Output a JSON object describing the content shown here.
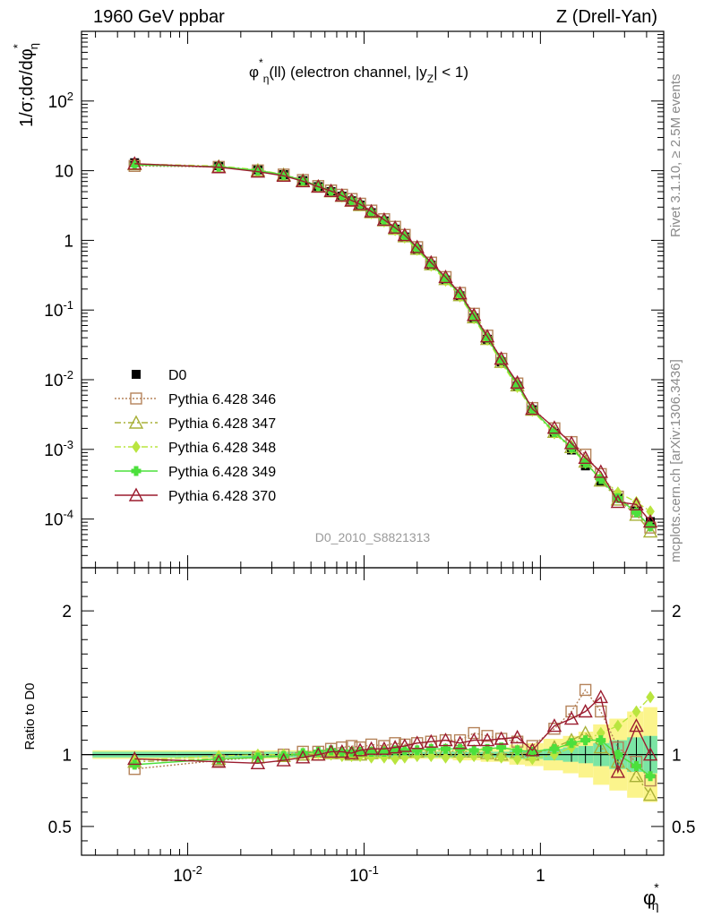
{
  "header": {
    "left": "1960 GeV ppbar",
    "right": "Z (Drell-Yan)"
  },
  "side_labels": {
    "rivet": "Rivet 3.1.10, ≥ 2.5M events",
    "mcplots": "mcplots.cern.ch [arXiv:1306.3436]"
  },
  "chart_data": {
    "type": "scatter",
    "plot_title_base": "φ",
    "plot_title_sup": "*",
    "plot_title_sub": "η",
    "plot_title_rest": "(ll) (electron channel, |y",
    "plot_title_ysub": "Z",
    "plot_title_end": "| < 1)",
    "analysis_id": "D0_2010_S8821313",
    "xlabel_base": "φ",
    "xlabel_sup": "*",
    "xlabel_sub": "η",
    "ylabel_main": "1/σ;dσ/dφ",
    "ylabel_sup": "*",
    "ylabel_sub": "η",
    "ratio_ylabel": "Ratio to D0",
    "xscale": "log",
    "yscale": "log",
    "xlim": [
      0.0025,
      5
    ],
    "ylim": [
      2e-05,
      1000
    ],
    "ratio_ylim": [
      0.3,
      2.3
    ],
    "x_tick_labels": [
      "10^-2",
      "10^-1",
      "1"
    ],
    "y_tick_labels": [
      "10^-4",
      "10^-3",
      "10^-2",
      "10^-1",
      "1",
      "10",
      "10^2"
    ],
    "ratio_tick_labels": [
      "0.5",
      "1",
      "2"
    ],
    "legend_placement": "lower-left",
    "x": [
      0.005,
      0.015,
      0.025,
      0.035,
      0.045,
      0.055,
      0.065,
      0.075,
      0.085,
      0.095,
      0.11,
      0.13,
      0.15,
      0.17,
      0.2,
      0.24,
      0.29,
      0.35,
      0.42,
      0.5,
      0.6,
      0.74,
      0.9,
      1.2,
      1.5,
      1.8,
      2.2,
      2.75,
      3.5,
      4.2
    ],
    "data_series": {
      "name": "D0",
      "color": "#000000",
      "values": [
        13.0,
        11.8,
        10.3,
        8.8,
        7.2,
        5.9,
        5.0,
        4.3,
        3.7,
        3.2,
        2.5,
        1.9,
        1.45,
        1.12,
        0.74,
        0.44,
        0.27,
        0.16,
        0.077,
        0.038,
        0.018,
        0.0081,
        0.0037,
        0.0017,
        0.00098,
        0.00058,
        0.00034,
        0.0002,
        0.000135,
        9.2e-05
      ],
      "band_inner_half_width": [
        0.02,
        0.02,
        0.02,
        0.02,
        0.02,
        0.02,
        0.02,
        0.02,
        0.02,
        0.02,
        0.02,
        0.02,
        0.02,
        0.02,
        0.02,
        0.02,
        0.02,
        0.02,
        0.02,
        0.02,
        0.02,
        0.03,
        0.03,
        0.04,
        0.05,
        0.06,
        0.08,
        0.1,
        0.12,
        0.13
      ],
      "band_outer_half_width": [
        0.01,
        0.01,
        0.01,
        0.01,
        0.01,
        0.01,
        0.01,
        0.01,
        0.01,
        0.01,
        0.01,
        0.01,
        0.01,
        0.01,
        0.01,
        0.01,
        0.01,
        0.02,
        0.02,
        0.03,
        0.03,
        0.04,
        0.05,
        0.07,
        0.08,
        0.1,
        0.13,
        0.15,
        0.18,
        0.2
      ]
    },
    "series": [
      {
        "name": "Pythia 6.428 346",
        "color": "#b5835a",
        "marker": "square",
        "line": "dotted",
        "ratio": [
          0.9,
          0.96,
          0.98,
          1.0,
          1.02,
          1.02,
          1.04,
          1.05,
          1.06,
          1.05,
          1.07,
          1.06,
          1.08,
          1.07,
          1.08,
          1.09,
          1.1,
          1.1,
          1.15,
          1.13,
          1.11,
          1.09,
          1.06,
          1.18,
          1.3,
          1.45,
          1.3,
          1.05,
          0.95,
          0.82
        ]
      },
      {
        "name": "Pythia 6.428 347",
        "color": "#a8b038",
        "marker": "triangle",
        "line": "dashdot",
        "ratio": [
          0.95,
          0.97,
          0.98,
          0.99,
          1.0,
          1.0,
          1.01,
          1.01,
          1.0,
          1.0,
          1.01,
          1.02,
          1.01,
          1.02,
          1.02,
          1.03,
          1.03,
          1.02,
          1.02,
          1.01,
          1.0,
          1.02,
          1.0,
          1.05,
          1.1,
          1.15,
          1.05,
          0.95,
          0.85,
          0.72
        ]
      },
      {
        "name": "Pythia 6.428 348",
        "color": "#b9e53f",
        "marker": "diamond",
        "line": "dashdot",
        "ratio": [
          0.96,
          0.99,
          1.0,
          1.0,
          1.01,
          1.01,
          1.0,
          0.99,
          0.99,
          0.99,
          0.98,
          0.98,
          0.97,
          0.98,
          0.99,
          0.99,
          0.98,
          0.98,
          0.99,
          0.99,
          0.98,
          0.97,
          0.97,
          1.0,
          1.05,
          1.1,
          1.15,
          1.2,
          1.3,
          1.4
        ]
      },
      {
        "name": "Pythia 6.428 349",
        "color": "#4ce03c",
        "marker": "cross",
        "line": "solid",
        "ratio": [
          0.93,
          0.97,
          0.98,
          0.99,
          1.01,
          1.02,
          1.03,
          1.02,
          1.02,
          1.02,
          1.02,
          1.02,
          1.03,
          1.03,
          1.03,
          1.04,
          1.04,
          1.04,
          1.03,
          1.04,
          1.05,
          1.03,
          1.02,
          1.04,
          1.08,
          1.1,
          1.1,
          1.0,
          0.92,
          0.85
        ]
      },
      {
        "name": "Pythia 6.428 370",
        "color": "#9b1c2f",
        "marker": "triangle",
        "line": "solid",
        "ratio": [
          0.97,
          0.95,
          0.94,
          0.96,
          0.98,
          1.0,
          1.02,
          1.02,
          1.01,
          1.03,
          1.04,
          1.04,
          1.05,
          1.06,
          1.08,
          1.09,
          1.1,
          1.08,
          1.1,
          1.1,
          1.11,
          1.12,
          1.03,
          1.2,
          1.25,
          1.3,
          1.4,
          0.88,
          1.2,
          1.0
        ]
      }
    ]
  }
}
